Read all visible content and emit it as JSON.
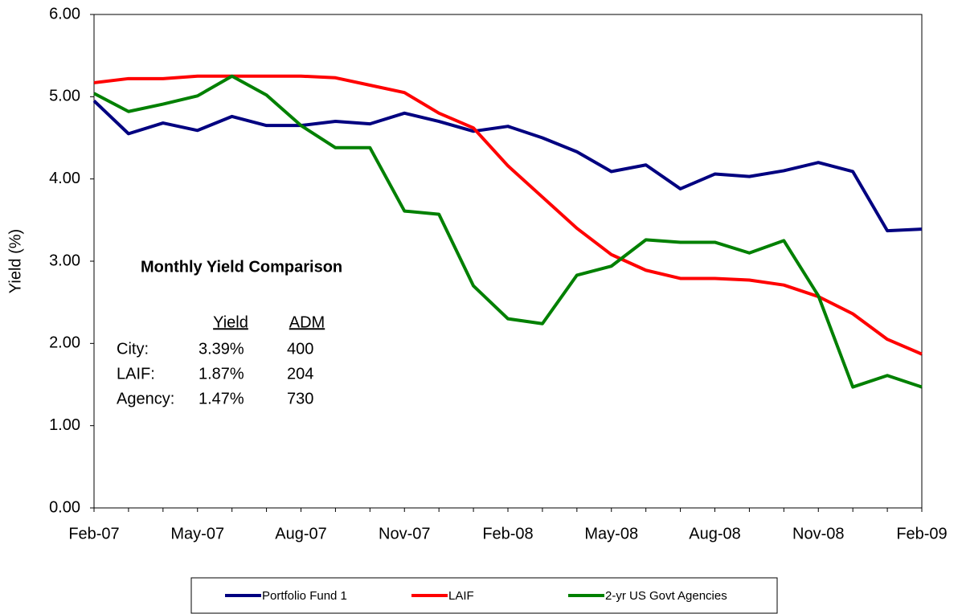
{
  "chart_data": {
    "type": "line",
    "y_label": "Yield (%)",
    "categories": [
      "Feb-07",
      null,
      null,
      "May-07",
      null,
      null,
      "Aug-07",
      null,
      null,
      "Nov-07",
      null,
      null,
      "Feb-08",
      null,
      null,
      "May-08",
      null,
      null,
      "Aug-08",
      null,
      null,
      "Nov-08",
      null,
      null,
      "Feb-09"
    ],
    "series": [
      {
        "name": "Portfolio Fund 1",
        "color": "#000080",
        "values": [
          4.95,
          4.55,
          4.68,
          4.59,
          4.76,
          4.65,
          4.65,
          4.7,
          4.67,
          4.8,
          4.7,
          4.58,
          4.64,
          4.5,
          4.33,
          4.09,
          4.17,
          3.88,
          4.06,
          4.03,
          4.1,
          4.2,
          4.09,
          3.37,
          3.39
        ]
      },
      {
        "name": "LAIF",
        "color": "#ff0000",
        "values": [
          5.17,
          5.22,
          5.22,
          5.25,
          5.25,
          5.25,
          5.25,
          5.23,
          5.14,
          5.05,
          4.8,
          4.62,
          4.16,
          3.78,
          3.4,
          3.08,
          2.89,
          2.79,
          2.79,
          2.77,
          2.71,
          2.57,
          2.36,
          2.05,
          1.87
        ]
      },
      {
        "name": "2-yr US Govt Agencies",
        "color": "#008000",
        "values": [
          5.04,
          4.82,
          4.91,
          5.01,
          5.25,
          5.02,
          4.65,
          4.38,
          4.38,
          3.61,
          3.57,
          2.7,
          2.3,
          2.24,
          2.83,
          2.94,
          3.26,
          3.23,
          3.23,
          3.1,
          3.25,
          2.58,
          1.47,
          1.61,
          1.47
        ]
      }
    ],
    "ylim": [
      0,
      6
    ],
    "yticks": [
      {
        "value": 0,
        "label": "0.00"
      },
      {
        "value": 1,
        "label": "1.00"
      },
      {
        "value": 2,
        "label": "2.00"
      },
      {
        "value": 3,
        "label": "3.00"
      },
      {
        "value": 4,
        "label": "4.00"
      },
      {
        "value": 5,
        "label": "5.00"
      },
      {
        "value": 6,
        "label": "6.00"
      }
    ],
    "grid": false,
    "legend": "bottom",
    "annotation": {
      "title": "Monthly Yield Comparison",
      "header": [
        "Yield",
        "ADM"
      ],
      "rows": [
        [
          "City:",
          "3.39%",
          "400"
        ],
        [
          "LAIF:",
          "1.87%",
          "204"
        ],
        [
          "Agency:",
          "1.47%",
          "730"
        ]
      ]
    }
  }
}
